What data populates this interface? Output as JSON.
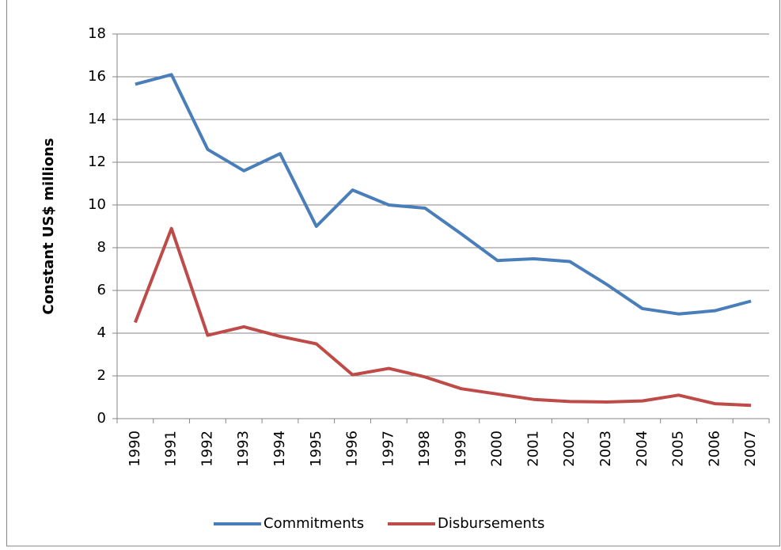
{
  "chart_data": {
    "type": "line",
    "ylabel": "Constant US$ millions",
    "categories": [
      "1990",
      "1991",
      "1992",
      "1993",
      "1994",
      "1995",
      "1996",
      "1997",
      "1998",
      "1999",
      "2000",
      "2001",
      "2002",
      "2003",
      "2004",
      "2005",
      "2006",
      "2007"
    ],
    "series": [
      {
        "name": "Commitments",
        "color": "#4a7ebb",
        "values": [
          15.65,
          16.1,
          12.6,
          11.6,
          12.4,
          9.0,
          10.7,
          10.0,
          9.85,
          8.65,
          7.4,
          7.48,
          7.35,
          6.3,
          5.15,
          4.9,
          5.05,
          5.5
        ]
      },
      {
        "name": "Disbursements",
        "color": "#be4b48",
        "values": [
          4.5,
          8.9,
          3.9,
          4.3,
          3.85,
          3.5,
          2.05,
          2.35,
          1.95,
          1.4,
          1.15,
          0.9,
          0.8,
          0.78,
          0.83,
          1.1,
          0.7,
          0.62
        ]
      }
    ],
    "ylim": [
      0,
      18
    ],
    "yticks": [
      0,
      2,
      4,
      6,
      8,
      10,
      12,
      14,
      16,
      18
    ],
    "grid": true,
    "legend": "bottom"
  }
}
